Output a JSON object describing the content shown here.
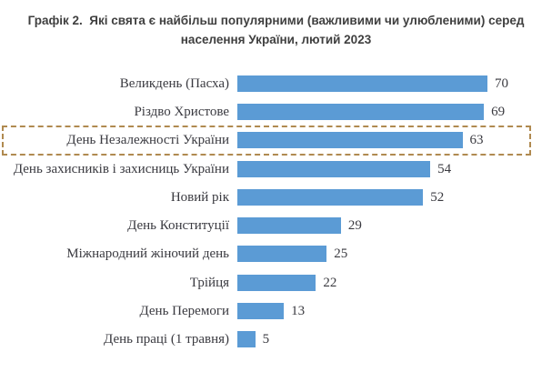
{
  "chart_data": {
    "type": "bar",
    "orientation": "horizontal",
    "title": "Графік 2.  Які свята є найбільш популярними (важливими чи улюбленими) серед населення України, лютий 2023",
    "categories": [
      "Великдень (Пасха)",
      "Різдво Христове",
      "День Незалежності України",
      "День захисників і захисниць України",
      "Новий рік",
      "День Конституції",
      "Міжнародний жіночий день",
      "Трійця",
      "День Перемоги",
      "День праці (1 травня)"
    ],
    "values": [
      70,
      69,
      63,
      54,
      52,
      29,
      25,
      22,
      13,
      5
    ],
    "value_max": 70,
    "xlim": [
      0,
      75
    ],
    "grid": false,
    "legend": false,
    "axes_visible": false,
    "value_labels_position": "end-of-bar",
    "bar_color": "#5B9BD5",
    "label_color": "#3A3A40",
    "title_color": "#3F3F3F",
    "highlight": {
      "category": "День Незалежності України",
      "value": 63,
      "style": "dashed-outline",
      "border_color": "#B08A50"
    }
  }
}
